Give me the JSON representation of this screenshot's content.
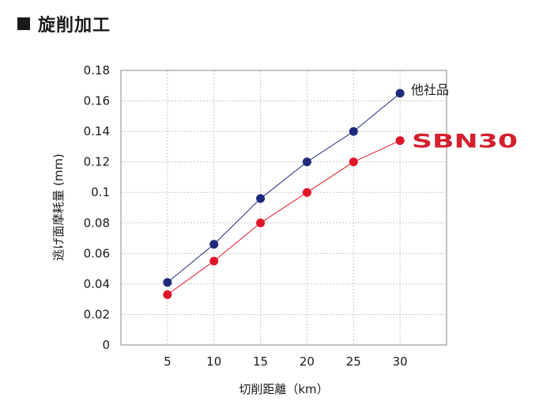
{
  "header": {
    "title": "旋削加工"
  },
  "chart_data": {
    "type": "line",
    "title": "旋削加工",
    "xlabel": "切削距離（km）",
    "ylabel": "逃げ面摩耗量 (mm)",
    "x": [
      5,
      10,
      15,
      20,
      25,
      30
    ],
    "xlim": [
      0,
      35
    ],
    "ylim": [
      0,
      0.18
    ],
    "yticks": [
      "0",
      "0.02",
      "0.04",
      "0.06",
      "0.08",
      "0.1",
      "0.12",
      "0.14",
      "0.16",
      "0.18"
    ],
    "xticks": [
      "5",
      "10",
      "15",
      "20",
      "25",
      "30"
    ],
    "grid": true,
    "legend_placement": "right, at end of each series",
    "series": [
      {
        "name": "他社品",
        "values": [
          0.041,
          0.066,
          0.096,
          0.12,
          0.14,
          0.165
        ],
        "color": "#1f2a7a"
      },
      {
        "name": "SBN30",
        "values": [
          0.033,
          0.055,
          0.08,
          0.1,
          0.12,
          0.134
        ],
        "color": "#e0152a"
      }
    ]
  }
}
